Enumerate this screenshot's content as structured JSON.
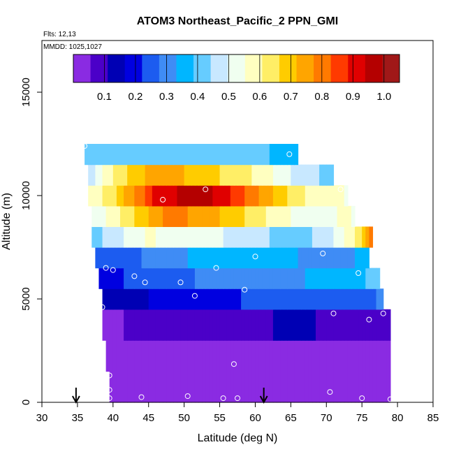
{
  "chart_data": {
    "type": "heatmap",
    "title": "ATOM3 Northeast_Pacific_2 PPN_GMI",
    "flights_label": "Flts: 12,13",
    "dates_label": "MMDD: 1025,1027",
    "xlabel": "Latitude (deg N)",
    "ylabel": "Altitude (m)",
    "xlim": [
      30,
      85
    ],
    "ylim": [
      0,
      17500
    ],
    "x_ticks": [
      "30",
      "35",
      "40",
      "45",
      "50",
      "55",
      "60",
      "65",
      "70",
      "75",
      "80",
      "85"
    ],
    "y_ticks": [
      "0",
      "5000",
      "10000",
      "15000"
    ],
    "colorbar": {
      "range": [
        0,
        1.05
      ],
      "tick_values": [
        0.1,
        0.2,
        0.3,
        0.4,
        0.5,
        0.6,
        0.7,
        0.8,
        0.9,
        1.0
      ],
      "tick_labels": [
        "0.1",
        "0.2",
        "0.3",
        "0.4",
        "0.5",
        "0.6",
        "0.7",
        "0.8",
        "0.9",
        "1.0"
      ],
      "colors": [
        "#8a2be2",
        "#4b00c8",
        "#0000b4",
        "#0000e0",
        "#1c5cf0",
        "#3f8cf5",
        "#00b6ff",
        "#66ccff",
        "#c8e8ff",
        "#f0fff0",
        "#ffffc0",
        "#ffee66",
        "#ffcc00",
        "#ffa500",
        "#ff7a00",
        "#ff3a00",
        "#e00000",
        "#b40000",
        "#a01818"
      ]
    },
    "layers": [
      {
        "alt": [
          0,
          1500
        ],
        "lat": [
          39.5,
          79
        ],
        "values": [
          [
            39.5,
            0.02
          ],
          [
            79,
            0.02
          ]
        ]
      },
      {
        "alt": [
          1500,
          3000
        ],
        "lat": [
          39,
          79
        ],
        "values": [
          [
            39,
            0.03
          ],
          [
            79,
            0.04
          ]
        ]
      },
      {
        "alt": [
          3000,
          4500
        ],
        "lat": [
          38.5,
          79
        ],
        "values": [
          [
            38.5,
            0.05
          ],
          [
            55,
            0.08
          ],
          [
            65,
            0.12
          ],
          [
            79,
            0.08
          ]
        ]
      },
      {
        "alt": [
          4500,
          5500
        ],
        "lat": [
          38.5,
          78
        ],
        "values": [
          [
            38.5,
            0.12
          ],
          [
            50,
            0.2
          ],
          [
            65,
            0.24
          ],
          [
            78,
            0.28
          ]
        ]
      },
      {
        "alt": [
          5500,
          6500
        ],
        "lat": [
          38,
          77.5
        ],
        "values": [
          [
            38,
            0.2
          ],
          [
            52,
            0.28
          ],
          [
            65,
            0.32
          ],
          [
            77.5,
            0.4
          ]
        ]
      },
      {
        "alt": [
          6500,
          7500
        ],
        "lat": [
          37.5,
          76
        ],
        "values": [
          [
            37.5,
            0.22
          ],
          [
            50,
            0.33
          ],
          [
            60,
            0.38
          ],
          [
            70,
            0.3
          ],
          [
            76,
            0.35
          ]
        ]
      },
      {
        "alt": [
          7500,
          8500
        ],
        "lat": [
          37,
          76.5
        ],
        "values": [
          [
            37,
            0.42
          ],
          [
            45,
            0.56
          ],
          [
            55,
            0.5
          ],
          [
            65,
            0.42
          ],
          [
            70,
            0.46
          ],
          [
            74,
            0.6
          ],
          [
            76.5,
            0.8
          ]
        ]
      },
      {
        "alt": [
          8500,
          9500
        ],
        "lat": [
          37,
          74
        ],
        "values": [
          [
            37,
            0.5
          ],
          [
            42,
            0.64
          ],
          [
            48,
            0.8
          ],
          [
            55,
            0.72
          ],
          [
            62,
            0.6
          ],
          [
            68,
            0.5
          ],
          [
            72,
            0.56
          ],
          [
            74,
            0.55
          ]
        ]
      },
      {
        "alt": [
          9500,
          10500
        ],
        "lat": [
          36.5,
          73
        ],
        "values": [
          [
            36.5,
            0.55
          ],
          [
            40,
            0.65
          ],
          [
            46,
            0.9
          ],
          [
            52,
            0.98
          ],
          [
            58,
            0.85
          ],
          [
            63,
            0.7
          ],
          [
            68,
            0.58
          ],
          [
            73,
            0.55
          ]
        ]
      },
      {
        "alt": [
          10500,
          11500
        ],
        "lat": [
          36.5,
          71
        ],
        "values": [
          [
            36.5,
            0.45
          ],
          [
            40,
            0.62
          ],
          [
            46,
            0.75
          ],
          [
            52,
            0.7
          ],
          [
            60,
            0.6
          ],
          [
            66,
            0.48
          ],
          [
            71,
            0.42
          ]
        ]
      },
      {
        "alt": [
          11500,
          12500
        ],
        "lat": [
          36,
          66
        ],
        "values": [
          [
            36,
            0.4
          ],
          [
            45,
            0.42
          ],
          [
            55,
            0.4
          ],
          [
            66,
            0.38
          ]
        ]
      }
    ],
    "points": [
      [
        36,
        12400
      ],
      [
        64.8,
        12000
      ],
      [
        72,
        10300
      ],
      [
        53,
        10300
      ],
      [
        47,
        9800
      ],
      [
        36.5,
        7200
      ],
      [
        60,
        7050
      ],
      [
        69.5,
        7200
      ],
      [
        39,
        6500
      ],
      [
        40,
        6400
      ],
      [
        43,
        6100
      ],
      [
        54.5,
        6500
      ],
      [
        74.5,
        6250
      ],
      [
        44.5,
        5800
      ],
      [
        49.5,
        5800
      ],
      [
        58.5,
        5450
      ],
      [
        51.5,
        5150
      ],
      [
        38.5,
        4600
      ],
      [
        71,
        4300
      ],
      [
        78,
        4300
      ],
      [
        76,
        4000
      ],
      [
        79.5,
        3850
      ],
      [
        57,
        1850
      ],
      [
        39.5,
        1300
      ],
      [
        39.5,
        600
      ],
      [
        39.5,
        200
      ],
      [
        44,
        250
      ],
      [
        50.5,
        300
      ],
      [
        55.5,
        200
      ],
      [
        57.5,
        200
      ],
      [
        70.5,
        500
      ],
      [
        75,
        200
      ],
      [
        79,
        150
      ]
    ],
    "arrows_lat": [
      34.8,
      61.2
    ]
  }
}
